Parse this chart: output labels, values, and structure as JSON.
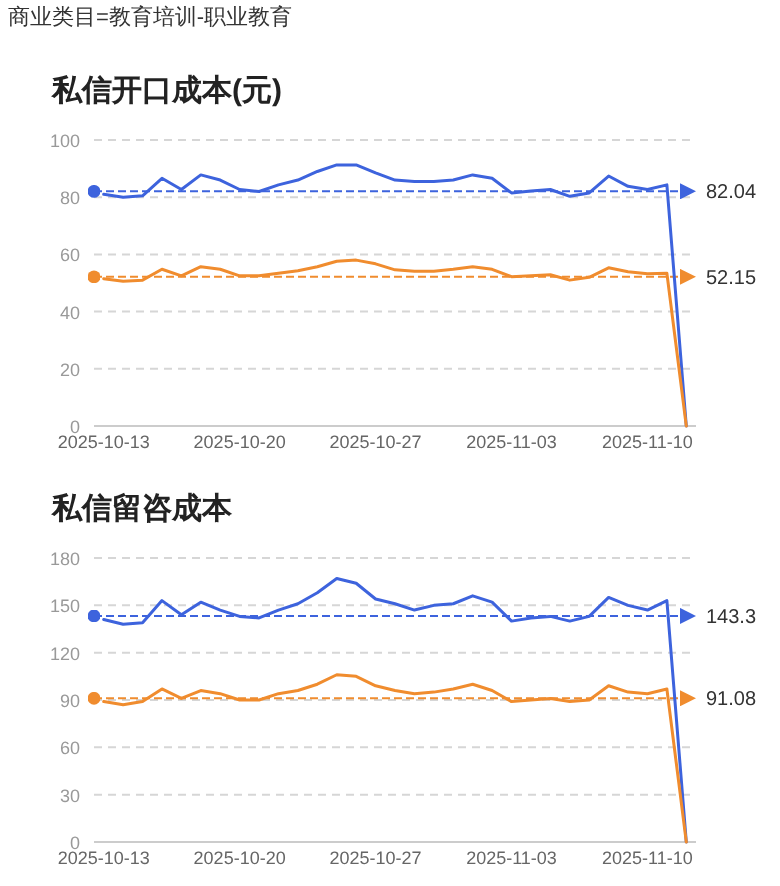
{
  "chart_data": [
    {
      "type": "line",
      "title": "私信开口成本(元)",
      "annotations": [
        "商业类目=教育培训-职业教育"
      ],
      "x": [
        "2025-10-13",
        "2025-10-14",
        "2025-10-15",
        "2025-10-16",
        "2025-10-17",
        "2025-10-18",
        "2025-10-19",
        "2025-10-20",
        "2025-10-21",
        "2025-10-22",
        "2025-10-23",
        "2025-10-24",
        "2025-10-25",
        "2025-10-26",
        "2025-10-27",
        "2025-10-28",
        "2025-10-29",
        "2025-10-30",
        "2025-10-31",
        "2025-11-01",
        "2025-11-02",
        "2025-11-03",
        "2025-11-04",
        "2025-11-05",
        "2025-11-06",
        "2025-11-07",
        "2025-11-08",
        "2025-11-09",
        "2025-11-10",
        "2025-11-11",
        "2025-11-12"
      ],
      "series": [
        {
          "color": "#3d63dd",
          "values": [
            81,
            80,
            80.5,
            86.6,
            82.7,
            87.8,
            86,
            82.7,
            82,
            84.3,
            86,
            89,
            91.3,
            91.3,
            88.5,
            86,
            85.5,
            85.5,
            86,
            87.8,
            86.6,
            81.5,
            82.2,
            82.7,
            80.3,
            81.5,
            87.4,
            83.8,
            82.7,
            84.3,
            0
          ]
        },
        {
          "color": "#f08c2e",
          "values": [
            51.5,
            50.6,
            51,
            54.8,
            52.5,
            55.7,
            54.8,
            52.5,
            52.5,
            53.4,
            54.3,
            55.7,
            57.6,
            58,
            56.7,
            54.6,
            54.1,
            54.1,
            54.8,
            55.7,
            54.8,
            52.2,
            52.5,
            52.9,
            51,
            52,
            55.3,
            53.9,
            53.2,
            53.4,
            0
          ]
        }
      ],
      "xlim": [
        "2025-10-12T12:00",
        "2025-11-12T12:00"
      ],
      "xticks": [
        "2025-10-13",
        "2025-10-20",
        "2025-10-27",
        "2025-11-03",
        "2025-11-10"
      ],
      "ylim": [
        0,
        100
      ],
      "yticks": [
        0,
        20,
        40,
        60,
        80,
        100
      ],
      "grid": "y",
      "ref_lines": [
        {
          "axis": "y",
          "value": 82.04,
          "label": "82.04",
          "color": "#3d63dd",
          "line_style": "dashed"
        },
        {
          "axis": "y",
          "value": 52.15,
          "label": "52.15",
          "color": "#f08c2e",
          "line_style": "dashed"
        }
      ]
    },
    {
      "type": "line",
      "title": "私信留咨成本",
      "x": [
        "2025-10-13",
        "2025-10-14",
        "2025-10-15",
        "2025-10-16",
        "2025-10-17",
        "2025-10-18",
        "2025-10-19",
        "2025-10-20",
        "2025-10-21",
        "2025-10-22",
        "2025-10-23",
        "2025-10-24",
        "2025-10-25",
        "2025-10-26",
        "2025-10-27",
        "2025-10-28",
        "2025-10-29",
        "2025-10-30",
        "2025-10-31",
        "2025-11-01",
        "2025-11-02",
        "2025-11-03",
        "2025-11-04",
        "2025-11-05",
        "2025-11-06",
        "2025-11-07",
        "2025-11-08",
        "2025-11-09",
        "2025-11-10",
        "2025-11-11",
        "2025-11-12"
      ],
      "series": [
        {
          "color": "#3d63dd",
          "values": [
            141,
            138,
            139,
            153,
            144,
            152,
            147,
            143,
            142,
            147,
            151,
            158,
            167,
            164,
            154,
            151,
            147,
            150,
            151,
            156,
            152,
            140,
            142,
            143,
            140,
            143,
            155,
            150,
            147,
            153,
            0
          ]
        },
        {
          "color": "#f08c2e",
          "values": [
            89,
            87,
            89,
            97,
            91,
            96,
            94,
            90,
            90,
            94,
            96,
            100,
            106,
            105,
            99,
            96,
            94,
            95,
            97,
            100,
            96,
            89,
            90,
            91,
            89,
            90,
            99,
            95,
            94,
            97,
            0
          ]
        }
      ],
      "xlim": [
        "2025-10-12T12:00",
        "2025-11-12T12:00"
      ],
      "xticks": [
        "2025-10-13",
        "2025-10-20",
        "2025-10-27",
        "2025-11-03",
        "2025-11-10"
      ],
      "ylim": [
        0,
        180
      ],
      "yticks": [
        0,
        30,
        60,
        90,
        120,
        150,
        180
      ],
      "grid": "y",
      "ref_lines": [
        {
          "axis": "y",
          "value": 143.3,
          "label": "143.3",
          "color": "#3d63dd",
          "line_style": "dashed"
        },
        {
          "axis": "y",
          "value": 91.08,
          "label": "91.08",
          "color": "#f08c2e",
          "line_style": "dashed"
        }
      ]
    }
  ]
}
